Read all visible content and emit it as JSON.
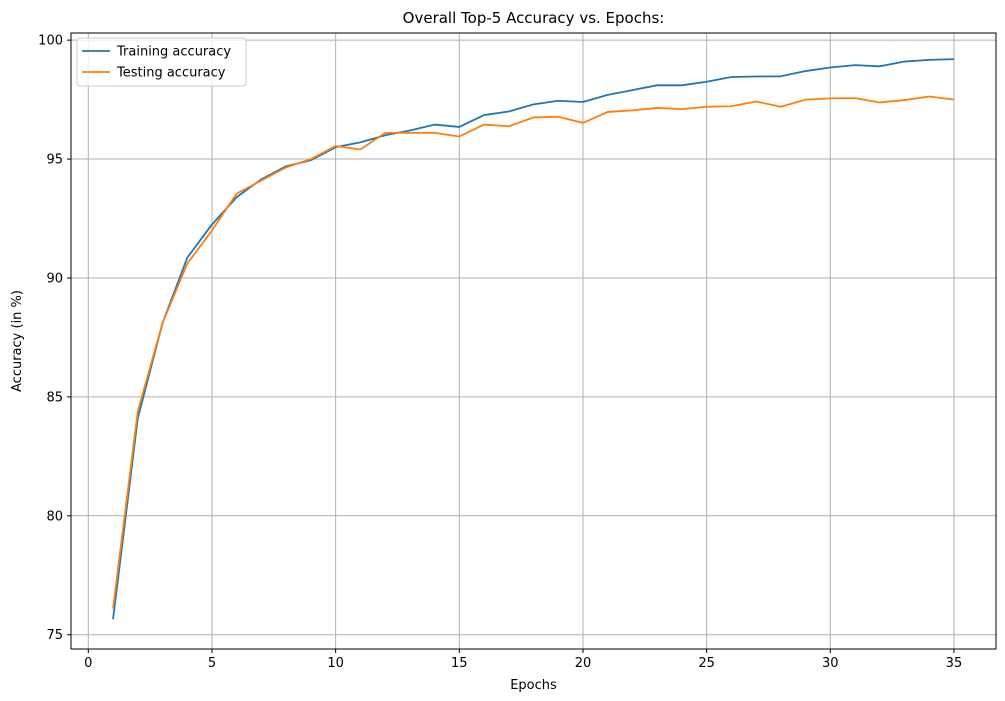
{
  "chart_data": {
    "type": "line",
    "title": "Overall Top-5 Accuracy vs. Epochs:",
    "xlabel": "Epochs",
    "ylabel": "Accuracy (in %)",
    "xlim": [
      -0.7,
      36.7
    ],
    "ylim": [
      74.4,
      100.3
    ],
    "xticks": [
      0,
      5,
      10,
      15,
      20,
      25,
      30,
      35
    ],
    "yticks": [
      75,
      80,
      85,
      90,
      95,
      100
    ],
    "grid": true,
    "legend_position": "upper-left",
    "x": [
      1,
      2,
      3,
      4,
      5,
      6,
      7,
      8,
      9,
      10,
      11,
      12,
      13,
      14,
      15,
      16,
      17,
      18,
      19,
      20,
      21,
      22,
      23,
      24,
      25,
      26,
      27,
      28,
      29,
      30,
      31,
      32,
      33,
      34,
      35
    ],
    "series": [
      {
        "name": "Training accuracy",
        "color": "#1f77b4",
        "values": [
          75.65,
          84.1,
          88.1,
          90.85,
          92.25,
          93.4,
          94.15,
          94.7,
          94.95,
          95.5,
          95.7,
          96.0,
          96.2,
          96.45,
          96.35,
          96.85,
          97.0,
          97.3,
          97.45,
          97.4,
          97.7,
          97.9,
          98.1,
          98.1,
          98.25,
          98.45,
          98.47,
          98.48,
          98.7,
          98.85,
          98.95,
          98.9,
          99.1,
          99.17,
          99.2
        ]
      },
      {
        "name": "Testing accuracy",
        "color": "#ff7f0e",
        "values": [
          76.1,
          84.4,
          88.1,
          90.6,
          92.0,
          93.55,
          94.1,
          94.65,
          95.0,
          95.55,
          95.4,
          96.1,
          96.1,
          96.1,
          95.95,
          96.45,
          96.38,
          96.75,
          96.78,
          96.52,
          96.98,
          97.05,
          97.15,
          97.1,
          97.2,
          97.22,
          97.42,
          97.2,
          97.5,
          97.55,
          97.56,
          97.38,
          97.48,
          97.63,
          97.5
        ]
      }
    ]
  }
}
